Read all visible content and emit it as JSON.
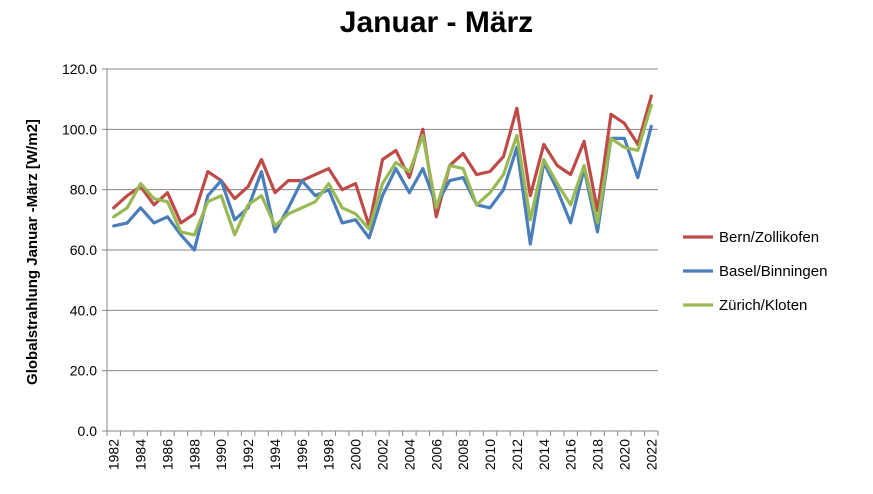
{
  "chart_data": {
    "type": "line",
    "title": "Januar - März",
    "xlabel": "",
    "ylabel": "Globalstrahlung Januar -März [W/m2]",
    "ylim": [
      0,
      120
    ],
    "yticks": [
      "0.0",
      "20.0",
      "40.0",
      "60.0",
      "80.0",
      "100.0",
      "120.0"
    ],
    "x": [
      1982,
      1983,
      1984,
      1985,
      1986,
      1987,
      1988,
      1989,
      1990,
      1991,
      1992,
      1993,
      1994,
      1995,
      1996,
      1997,
      1998,
      1999,
      2000,
      2001,
      2002,
      2003,
      2004,
      2005,
      2006,
      2007,
      2008,
      2009,
      2010,
      2011,
      2012,
      2013,
      2014,
      2015,
      2016,
      2017,
      2018,
      2019,
      2020,
      2021,
      2022
    ],
    "xticks": [
      "1982",
      "1984",
      "1986",
      "1988",
      "1990",
      "1992",
      "1994",
      "1996",
      "1998",
      "2000",
      "2002",
      "2004",
      "2006",
      "2008",
      "2010",
      "2012",
      "2014",
      "2016",
      "2018",
      "2020",
      "2022"
    ],
    "grid": "horizontal",
    "legend": "right",
    "series": [
      {
        "name": "Bern/Zollikofen",
        "color": "#be4b48",
        "values": [
          74,
          78,
          81,
          75,
          79,
          69,
          72,
          86,
          83,
          77,
          81,
          90,
          79,
          83,
          83,
          85,
          87,
          80,
          82,
          68,
          90,
          93,
          84,
          100,
          71,
          88,
          92,
          85,
          86,
          91,
          107,
          78,
          95,
          88,
          85,
          96,
          73,
          105,
          102,
          95,
          111
        ]
      },
      {
        "name": "Basel/Binningen",
        "color": "#4a7ebb",
        "values": [
          68,
          69,
          74,
          69,
          71,
          65,
          60,
          78,
          83,
          70,
          74,
          86,
          66,
          74,
          83,
          78,
          80,
          69,
          70,
          64,
          78,
          87,
          79,
          87,
          75,
          83,
          84,
          75,
          74,
          80,
          94,
          62,
          89,
          80,
          69,
          87,
          66,
          97,
          97,
          84,
          101
        ]
      },
      {
        "name": "Zürich/Kloten",
        "color": "#98b954",
        "values": [
          71,
          74,
          82,
          77,
          76,
          66,
          65,
          76,
          78,
          65,
          75,
          78,
          68,
          72,
          74,
          76,
          82,
          74,
          72,
          67,
          82,
          89,
          86,
          98,
          74,
          88,
          87,
          75,
          79,
          85,
          98,
          70,
          90,
          82,
          75,
          88,
          69,
          97,
          94,
          93,
          108
        ]
      }
    ]
  }
}
